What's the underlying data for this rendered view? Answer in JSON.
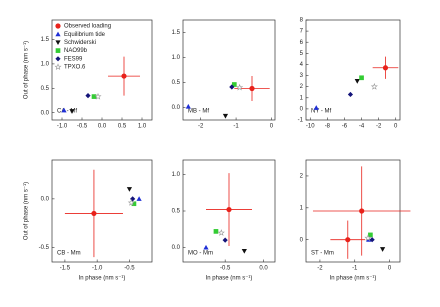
{
  "chart_data": [
    {
      "type": "scatter",
      "label": "CA - Mf",
      "ylabel": "Out of phase (nm s⁻¹)",
      "xlim": [
        -1.25,
        1.25
      ],
      "ylim": [
        -0.15,
        1.9
      ],
      "xticks": [
        {
          "value": -1,
          "label": "-1.0"
        },
        -0.5,
        {
          "value": 0,
          "label": "0.0"
        },
        0.5,
        {
          "value": 1,
          "label": "1.0"
        }
      ],
      "yticks": [
        {
          "value": 0,
          "label": "0.0"
        },
        0.5,
        {
          "value": 1,
          "label": "1.0"
        },
        1.5
      ],
      "series": [
        {
          "name": "Observed loading",
          "color": "#e8221b",
          "marker": "circle",
          "x": [
            0.55
          ],
          "y": [
            0.75
          ],
          "xerr": [
            0.4
          ],
          "yerr": [
            0.4
          ]
        },
        {
          "name": "Equilibrium tide",
          "color": "#1f2fd6",
          "marker": "triangle",
          "x": [
            -0.95
          ],
          "y": [
            0.05
          ]
        },
        {
          "name": "Schwiderski",
          "color": "#111111",
          "marker": "tridown",
          "x": [
            -0.75
          ],
          "y": [
            0.03
          ]
        },
        {
          "name": "NAO99b",
          "color": "#33cc33",
          "marker": "square",
          "x": [
            -0.2
          ],
          "y": [
            0.33
          ]
        },
        {
          "name": "FES99",
          "color": "#14147a",
          "marker": "diamond",
          "x": [
            -0.35
          ],
          "y": [
            0.35
          ]
        },
        {
          "name": "TPXO.6",
          "color": "#999999",
          "marker": "star",
          "x": [
            -0.1
          ],
          "y": [
            0.33
          ]
        }
      ]
    },
    {
      "type": "scatter",
      "label": "MB - Mf",
      "xlim": [
        -2.5,
        0.1
      ],
      "ylim": [
        -0.25,
        1.75
      ],
      "xticks": [
        -2,
        -1,
        0
      ],
      "yticks": [
        {
          "value": 0,
          "label": "0.0"
        },
        0.5,
        {
          "value": 1,
          "label": "1.0"
        },
        1.5
      ],
      "series": [
        {
          "color": "#e8221b",
          "marker": "circle",
          "x": [
            -0.55
          ],
          "y": [
            0.38
          ],
          "xerr": [
            0.5
          ],
          "yerr": [
            0.25
          ]
        },
        {
          "color": "#1f2fd6",
          "marker": "triangle",
          "x": [
            -2.35
          ],
          "y": [
            0.02
          ]
        },
        {
          "color": "#111111",
          "marker": "tridown",
          "x": [
            -1.3
          ],
          "y": [
            -0.17
          ]
        },
        {
          "color": "#33cc33",
          "marker": "square",
          "x": [
            -1.05
          ],
          "y": [
            0.46
          ]
        },
        {
          "color": "#14147a",
          "marker": "diamond",
          "x": [
            -1.12
          ],
          "y": [
            0.41
          ]
        },
        {
          "color": "#999999",
          "marker": "star",
          "x": [
            -0.9
          ],
          "y": [
            0.4
          ]
        }
      ]
    },
    {
      "type": "scatter",
      "label": "NY - Mf",
      "xlim": [
        -10.5,
        0.5
      ],
      "ylim": [
        -1,
        8
      ],
      "xticks": [
        -10,
        -8,
        -6,
        -4,
        -2,
        0
      ],
      "yticks": [
        -1,
        0,
        1,
        2,
        3,
        4,
        5,
        6,
        7,
        8
      ],
      "series": [
        {
          "color": "#e8221b",
          "marker": "circle",
          "x": [
            -1.2
          ],
          "y": [
            3.7
          ],
          "xerr": [
            1.5
          ],
          "yerr": [
            1.0
          ]
        },
        {
          "color": "#1f2fd6",
          "marker": "triangle",
          "x": [
            -9.3
          ],
          "y": [
            0.1
          ]
        },
        {
          "color": "#111111",
          "marker": "tridown",
          "x": [
            -4.5
          ],
          "y": [
            2.5
          ]
        },
        {
          "color": "#33cc33",
          "marker": "square",
          "x": [
            -4.0
          ],
          "y": [
            2.8
          ]
        },
        {
          "color": "#14147a",
          "marker": "diamond",
          "x": [
            -5.3
          ],
          "y": [
            1.3
          ]
        },
        {
          "color": "#999999",
          "marker": "star",
          "x": [
            -2.5
          ],
          "y": [
            2.0
          ]
        }
      ]
    },
    {
      "type": "scatter",
      "label": "CB - Mm",
      "ylabel": "Out of phase (nm s⁻¹)",
      "xlabel": "In phase (nm s⁻¹)",
      "xlim": [
        -1.7,
        -0.15
      ],
      "ylim": [
        -0.65,
        0.4
      ],
      "xticks": [
        -1.5,
        {
          "value": -1,
          "label": "-1.0"
        },
        -0.5
      ],
      "yticks": [
        -0.5,
        {
          "value": 0,
          "label": "0.0"
        }
      ],
      "series": [
        {
          "color": "#e8221b",
          "marker": "circle",
          "x": [
            -1.05
          ],
          "y": [
            -0.15
          ],
          "xerr": [
            0.45
          ],
          "yerr": [
            0.45
          ]
        },
        {
          "color": "#1f2fd6",
          "marker": "triangle",
          "x": [
            -0.35
          ],
          "y": [
            0.0
          ]
        },
        {
          "color": "#111111",
          "marker": "tridown",
          "x": [
            -0.5
          ],
          "y": [
            0.1
          ]
        },
        {
          "color": "#33cc33",
          "marker": "square",
          "x": [
            -0.43
          ],
          "y": [
            -0.05
          ]
        },
        {
          "color": "#14147a",
          "marker": "diamond",
          "x": [
            -0.45
          ],
          "y": [
            0.0
          ]
        },
        {
          "color": "#999999",
          "marker": "star",
          "x": [
            -0.47
          ],
          "y": [
            -0.04
          ]
        }
      ]
    },
    {
      "type": "scatter",
      "label": "MO - Mm",
      "xlabel": "In phase (nm s⁻¹)",
      "xlim": [
        -1.05,
        0.15
      ],
      "ylim": [
        -0.2,
        1.2
      ],
      "xticks": [
        -0.5,
        {
          "value": 0,
          "label": "0.0"
        }
      ],
      "yticks": [
        {
          "value": 0,
          "label": "0.0"
        },
        0.5,
        {
          "value": 1,
          "label": "1.0"
        }
      ],
      "series": [
        {
          "color": "#e8221b",
          "marker": "circle",
          "x": [
            -0.45
          ],
          "y": [
            0.52
          ],
          "xerr": [
            0.3
          ],
          "yerr": [
            0.5
          ]
        },
        {
          "color": "#1f2fd6",
          "marker": "triangle",
          "x": [
            -0.75
          ],
          "y": [
            0.0
          ]
        },
        {
          "color": "#111111",
          "marker": "tridown",
          "x": [
            -0.25
          ],
          "y": [
            -0.05
          ]
        },
        {
          "color": "#33cc33",
          "marker": "square",
          "x": [
            -0.62
          ],
          "y": [
            0.22
          ]
        },
        {
          "color": "#14147a",
          "marker": "diamond",
          "x": [
            -0.5
          ],
          "y": [
            0.1
          ]
        },
        {
          "color": "#999999",
          "marker": "star",
          "x": [
            -0.55
          ],
          "y": [
            0.2
          ]
        }
      ]
    },
    {
      "type": "scatter",
      "label": "ST - Mm",
      "xlabel": "In phase (nm s⁻¹)",
      "xlim": [
        -2.4,
        0.3
      ],
      "ylim": [
        -0.7,
        2.5
      ],
      "xticks": [
        -2,
        -1,
        0
      ],
      "yticks": [
        0,
        1,
        2
      ],
      "series": [
        {
          "color": "#e8221b",
          "marker": "circle",
          "x": [
            -1.2,
            -0.8
          ],
          "y": [
            0.0,
            0.9
          ],
          "xerr": [
            0.5,
            1.4
          ],
          "yerr": [
            0.6,
            1.4
          ]
        },
        {
          "color": "#1f2fd6",
          "marker": "triangle",
          "x": [
            -0.6
          ],
          "y": [
            0.0
          ]
        },
        {
          "color": "#111111",
          "marker": "tridown",
          "x": [
            -0.2
          ],
          "y": [
            -0.3
          ]
        },
        {
          "color": "#33cc33",
          "marker": "square",
          "x": [
            -0.55
          ],
          "y": [
            0.15
          ]
        },
        {
          "color": "#14147a",
          "marker": "diamond",
          "x": [
            -0.5
          ],
          "y": [
            0.0
          ]
        },
        {
          "color": "#999999",
          "marker": "star",
          "x": [
            -0.62
          ],
          "y": [
            0.05
          ]
        }
      ]
    }
  ]
}
